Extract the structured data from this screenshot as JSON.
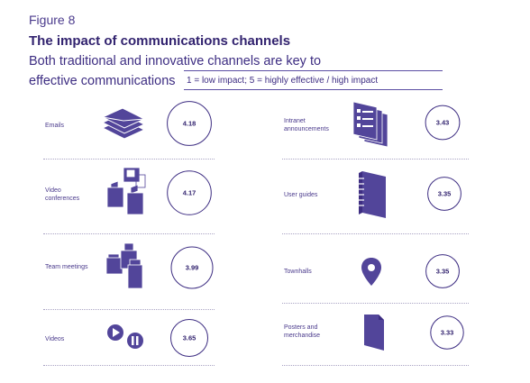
{
  "figure_label": "Figure 8",
  "title": "The impact of communications channels",
  "subtitle": "Both traditional and innovative channels are key to effective communications",
  "scale_note": "1 = low impact; 5 = highly effective / high impact",
  "colors": {
    "ink": "#3d2d82",
    "icon_fill": "#52459a",
    "rule": "#a9a3c4"
  },
  "chart_data": {
    "type": "bubble-list",
    "title": "The impact of communications channels",
    "scale": [
      1,
      5
    ],
    "items": [
      {
        "label": "Emails",
        "value": 4.18,
        "icon": "envelopes-icon"
      },
      {
        "label": "Video conferences",
        "value": 4.17,
        "icon": "video-conference-icon"
      },
      {
        "label": "Team meetings",
        "value": 3.99,
        "icon": "team-meeting-icon"
      },
      {
        "label": "Videos",
        "value": 3.65,
        "icon": "play-pause-icon"
      },
      {
        "label": "Intranet announcements",
        "value": 3.43,
        "icon": "intranet-pages-icon"
      },
      {
        "label": "User guides",
        "value": 3.35,
        "icon": "notebook-icon"
      },
      {
        "label": "Townhalls",
        "value": 3.35,
        "icon": "map-pin-icon"
      },
      {
        "label": "Posters and merchandise",
        "value": 3.33,
        "icon": "poster-icon"
      }
    ]
  }
}
